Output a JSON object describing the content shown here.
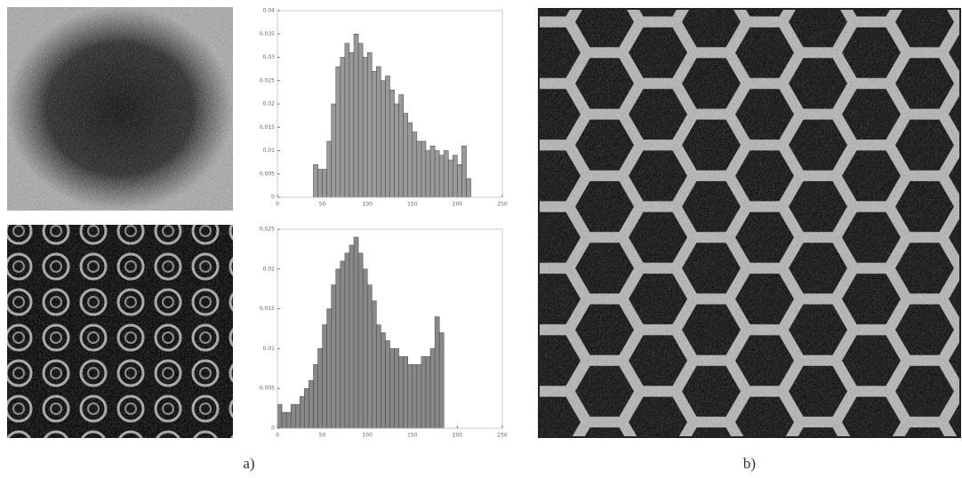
{
  "chart_data": [
    {
      "type": "histogram",
      "bins": [
        40,
        45,
        50,
        55,
        60,
        65,
        70,
        75,
        80,
        85,
        90,
        95,
        100,
        105,
        110,
        115,
        120,
        125,
        130,
        135,
        140,
        145,
        150,
        155,
        160,
        165,
        170,
        175,
        180,
        185,
        190,
        195,
        200,
        205,
        210,
        215
      ],
      "values": [
        0.007,
        0.006,
        0.006,
        0.012,
        0.02,
        0.028,
        0.03,
        0.033,
        0.031,
        0.035,
        0.033,
        0.03,
        0.031,
        0.027,
        0.028,
        0.025,
        0.026,
        0.023,
        0.02,
        0.022,
        0.018,
        0.016,
        0.014,
        0.012,
        0.012,
        0.01,
        0.011,
        0.01,
        0.009,
        0.01,
        0.008,
        0.009,
        0.007,
        0.011,
        0.004
      ],
      "color": "#999999",
      "xlim": [
        0,
        250
      ],
      "xticks": [
        0,
        50,
        100,
        150,
        200,
        250
      ],
      "ylim": [
        0,
        0.04
      ],
      "yticks": [
        0,
        0.005,
        0.01,
        0.015,
        0.02,
        0.025,
        0.03,
        0.035,
        0.04
      ]
    },
    {
      "type": "histogram",
      "bins": [
        0,
        5,
        10,
        15,
        20,
        25,
        30,
        35,
        40,
        45,
        50,
        55,
        60,
        65,
        70,
        75,
        80,
        85,
        90,
        95,
        100,
        105,
        110,
        115,
        120,
        125,
        130,
        135,
        140,
        145,
        150,
        155,
        160,
        165,
        170,
        175,
        180,
        185
      ],
      "values": [
        0.003,
        0.002,
        0.002,
        0.003,
        0.003,
        0.004,
        0.005,
        0.006,
        0.008,
        0.01,
        0.013,
        0.015,
        0.018,
        0.02,
        0.021,
        0.022,
        0.023,
        0.024,
        0.022,
        0.02,
        0.018,
        0.016,
        0.013,
        0.012,
        0.011,
        0.01,
        0.01,
        0.009,
        0.009,
        0.008,
        0.008,
        0.008,
        0.009,
        0.009,
        0.01,
        0.014,
        0.012
      ],
      "color": "#888888",
      "xlim": [
        0,
        250
      ],
      "xticks": [
        0,
        50,
        100,
        150,
        200,
        250
      ],
      "ylim": [
        0,
        0.025
      ],
      "yticks": [
        0,
        0.005,
        0.01,
        0.015,
        0.02,
        0.025
      ]
    }
  ],
  "captions": [
    "a)",
    "b)"
  ]
}
